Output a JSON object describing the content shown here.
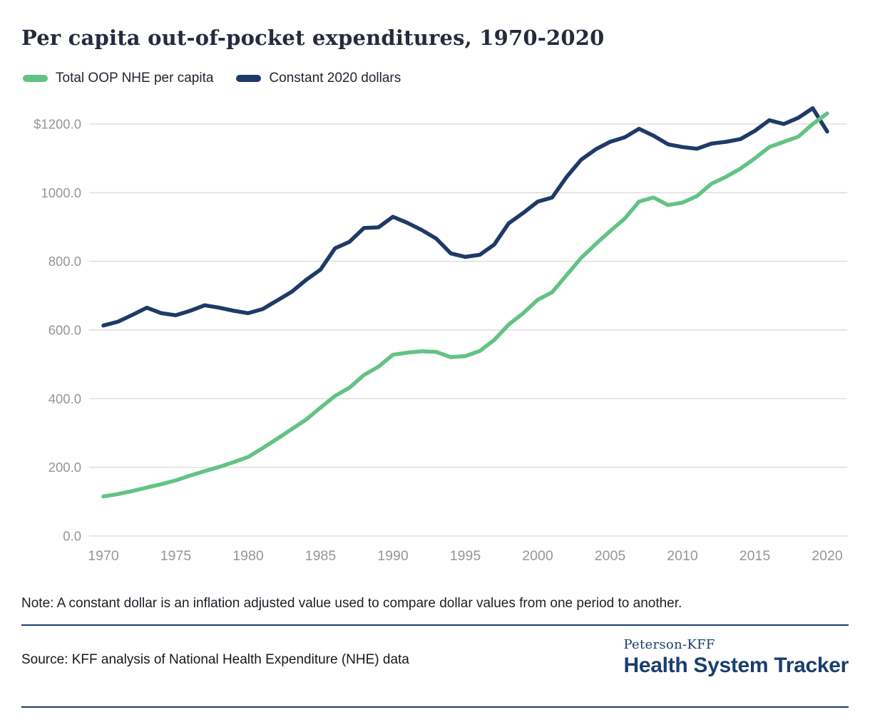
{
  "page": {
    "title": "Per capita out-of-pocket expenditures, 1970-2020",
    "note": "Note: A constant dollar is an inflation adjusted value used to compare dollar values from one period to another.",
    "source": "Source: KFF analysis of National Health Expenditure (NHE) data",
    "brand": {
      "line1": "Peterson-KFF",
      "line2": "Health System Tracker"
    }
  },
  "colors": {
    "green": "#63c384",
    "navy": "#1e3a68",
    "grid": "#dedede",
    "axis_text": "#95969b",
    "brand_navy": "#1a3e6d",
    "title_text": "#252b3d"
  },
  "legend": [
    {
      "label": "Total OOP NHE per capita",
      "color": "#63c384"
    },
    {
      "label": "Constant 2020 dollars",
      "color": "#1e3a68"
    }
  ],
  "chart_data": {
    "type": "line",
    "title": "Per capita out-of-pocket expenditures, 1970-2020",
    "xlabel": "",
    "ylabel": "",
    "ylim": [
      0,
      1283
    ],
    "grid": "horizontal",
    "legend_position": "top-left",
    "x": [
      1970,
      1971,
      1972,
      1973,
      1974,
      1975,
      1976,
      1977,
      1978,
      1979,
      1980,
      1981,
      1982,
      1983,
      1984,
      1985,
      1986,
      1987,
      1988,
      1989,
      1990,
      1991,
      1992,
      1993,
      1994,
      1995,
      1996,
      1997,
      1998,
      1999,
      2000,
      2001,
      2002,
      2003,
      2004,
      2005,
      2006,
      2007,
      2008,
      2009,
      2010,
      2011,
      2012,
      2013,
      2014,
      2015,
      2016,
      2017,
      2018,
      2019,
      2020
    ],
    "x_ticks": [
      1970,
      1975,
      1980,
      1985,
      1990,
      1995,
      2000,
      2005,
      2010,
      2015,
      2020
    ],
    "y_ticks": [
      {
        "value": 1200,
        "label": "$1200.0"
      },
      {
        "value": 1000,
        "label": "1000.0"
      },
      {
        "value": 800,
        "label": "800.0"
      },
      {
        "value": 600,
        "label": "600.0"
      },
      {
        "value": 400,
        "label": "400.0"
      },
      {
        "value": 200,
        "label": "200.0"
      },
      {
        "value": 0,
        "label": "0.0"
      }
    ],
    "series": [
      {
        "name": "Total OOP NHE per capita",
        "color": "#63c384",
        "values": [
          115,
          122,
          131,
          141,
          151,
          162,
          176,
          189,
          201,
          215,
          230,
          256,
          283,
          311,
          339,
          374,
          408,
          432,
          469,
          493,
          528,
          534,
          538,
          536,
          521,
          524,
          539,
          571,
          616,
          649,
          688,
          710,
          760,
          810,
          850,
          888,
          924,
          974,
          986,
          964,
          971,
          990,
          1026,
          1046,
          1070,
          1100,
          1133,
          1148,
          1163,
          1200,
          1231
        ]
      },
      {
        "name": "Constant 2020 dollars",
        "color": "#1e3a68",
        "values": [
          613,
          624,
          644,
          665,
          649,
          643,
          656,
          672,
          665,
          656,
          649,
          661,
          686,
          711,
          746,
          776,
          838,
          857,
          897,
          899,
          930,
          912,
          891,
          866,
          823,
          813,
          819,
          849,
          911,
          941,
          974,
          986,
          1046,
          1096,
          1126,
          1148,
          1161,
          1186,
          1166,
          1141,
          1133,
          1128,
          1143,
          1148,
          1156,
          1180,
          1211,
          1200,
          1218,
          1246,
          1178
        ]
      }
    ]
  }
}
